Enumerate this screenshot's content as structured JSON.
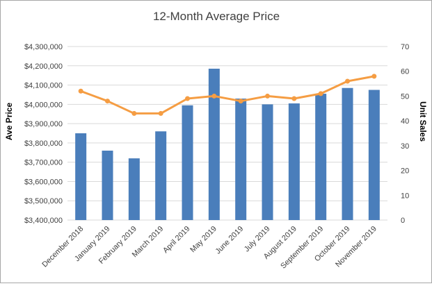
{
  "chart_data": {
    "type": "bar",
    "title": "12-Month Average Price",
    "ylabel": "Ave Price",
    "y2label": "Unit Sales",
    "categories": [
      "December 2018",
      "January 2019",
      "February 2019",
      "March 2019",
      "April 2019",
      "May 2019",
      "June 2019",
      "July 2019",
      "August 2019",
      "September 2019",
      "October 2019",
      "November 2019"
    ],
    "ylim": [
      3400000,
      4300000
    ],
    "y_ticks": [
      3400000,
      3500000,
      3600000,
      3700000,
      3800000,
      3900000,
      4000000,
      4100000,
      4200000,
      4300000
    ],
    "y_tick_labels": [
      "$3,400,000",
      "$3,500,000",
      "$3,600,000",
      "$3,700,000",
      "$3,800,000",
      "$3,900,000",
      "$4,000,000",
      "$4,100,000",
      "$4,200,000",
      "$4,300,000"
    ],
    "y2lim": [
      0,
      70
    ],
    "y2_ticks": [
      0,
      10,
      20,
      30,
      40,
      50,
      60,
      70
    ],
    "y2_tick_labels": [
      "0",
      "10",
      "20",
      "30",
      "40",
      "50",
      "60",
      "70"
    ],
    "grid": true,
    "legend": "none",
    "series": [
      {
        "axis": "left",
        "chart": "bar",
        "color": "#4a7ebb",
        "values": [
          3850000,
          3760000,
          3720000,
          3860000,
          3995000,
          4185000,
          4030000,
          4000000,
          4005000,
          4055000,
          4085000,
          4075000
        ]
      },
      {
        "axis": "right",
        "chart": "line",
        "color": "#f59d43",
        "values": [
          52,
          48,
          43,
          43,
          49,
          50,
          48,
          50,
          49,
          51,
          56,
          58
        ]
      }
    ]
  }
}
